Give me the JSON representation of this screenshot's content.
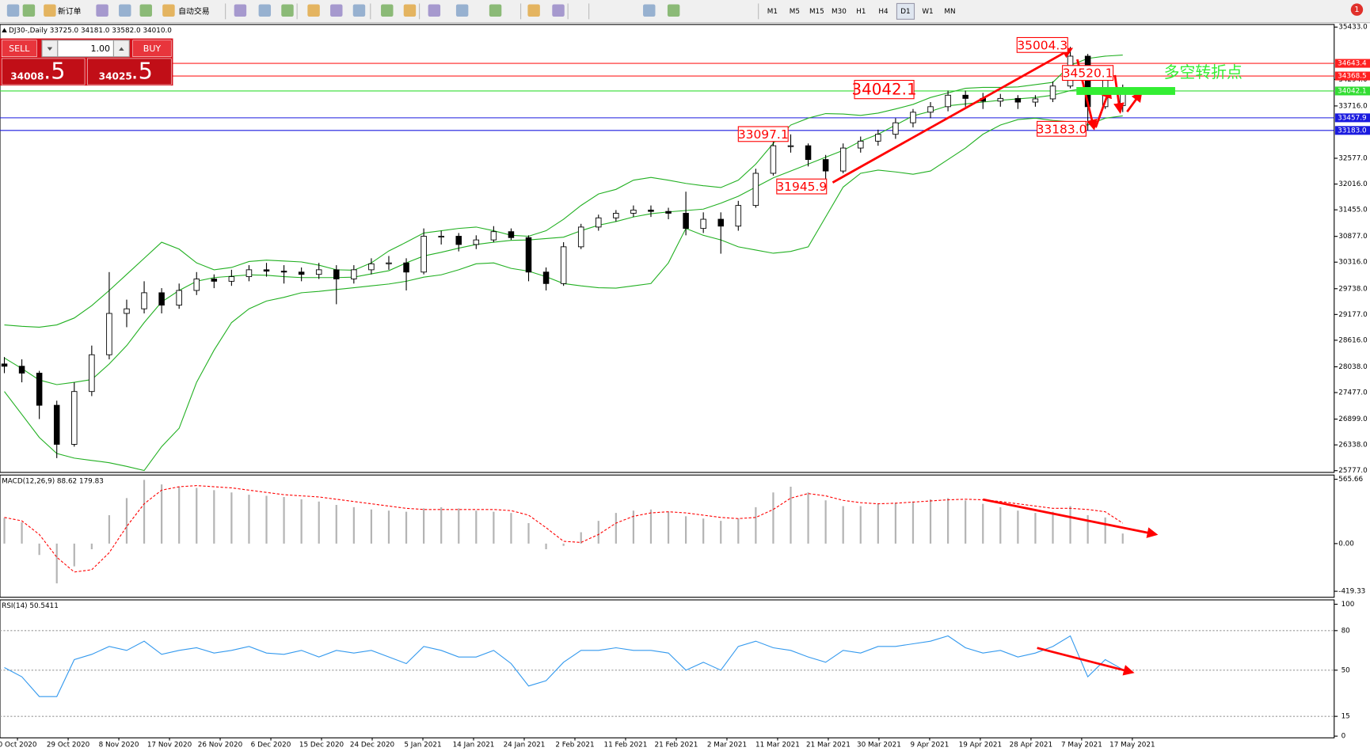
{
  "toolbar": {
    "buttons": [
      "新订单",
      "自动交易"
    ],
    "timeframes": [
      "M1",
      "M5",
      "M15",
      "M30",
      "H1",
      "H4",
      "D1",
      "W1",
      "MN"
    ],
    "active_timeframe": "D1",
    "badge": "1"
  },
  "trade_panel": {
    "sell": "SELL",
    "buy": "BUY",
    "volume": "1.00",
    "sell_price": "34008",
    "sell_pips": ".5",
    "buy_price": "34025",
    "buy_pips": ".5"
  },
  "chart_data": {
    "type": "candlestick",
    "header": "DJ30-,Daily  33725.0 34181.0 33582.0 34010.0",
    "ylim": [
      25739,
      35490
    ],
    "yticks": [
      {
        "value": 35433,
        "label": "35433.0"
      },
      {
        "value": 34294,
        "label": "34294.0"
      },
      {
        "value": 33716,
        "label": "33716.0"
      },
      {
        "value": 32577,
        "label": "32577.0"
      },
      {
        "value": 32016,
        "label": "32016.0"
      },
      {
        "value": 31455,
        "label": "31455.0"
      },
      {
        "value": 30877,
        "label": "30877.0"
      },
      {
        "value": 30316,
        "label": "30316.0"
      },
      {
        "value": 29738,
        "label": "29738.0"
      },
      {
        "value": 29177,
        "label": "29177.0"
      },
      {
        "value": 28616,
        "label": "28616.0"
      },
      {
        "value": 28038,
        "label": "28038.0"
      },
      {
        "value": 27477,
        "label": "27477.0"
      },
      {
        "value": 26899,
        "label": "26899.0"
      },
      {
        "value": 26338,
        "label": "26338.0"
      },
      {
        "value": 25777,
        "label": "25777.0"
      }
    ],
    "dates": [
      "0 Oct 2020",
      "29 Oct 2020",
      "8 Nov 2020",
      "17 Nov 2020",
      "26 Nov 2020",
      "6 Dec 2020",
      "15 Dec 2020",
      "24 Dec 2020",
      "5 Jan 2021",
      "14 Jan 2021",
      "24 Jan 2021",
      "2 Feb 2021",
      "11 Feb 2021",
      "21 Feb 2021",
      "2 Mar 2021",
      "11 Mar 2021",
      "21 Mar 2021",
      "30 Mar 2021",
      "9 Apr 2021",
      "19 Apr 2021",
      "28 Apr 2021",
      "7 May 2021",
      "17 May 2021"
    ],
    "ohlc": [
      [
        28100,
        28250,
        27900,
        28050
      ],
      [
        28050,
        28200,
        27700,
        27900
      ],
      [
        27900,
        27950,
        26900,
        27200
      ],
      [
        27200,
        27300,
        26050,
        26350
      ],
      [
        26350,
        27700,
        26300,
        27500
      ],
      [
        27500,
        28500,
        27400,
        28300
      ],
      [
        28300,
        30100,
        28200,
        29200
      ],
      [
        29200,
        29500,
        28900,
        29300
      ],
      [
        29300,
        29900,
        29200,
        29650
      ],
      [
        29650,
        29750,
        29200,
        29380
      ],
      [
        29380,
        29850,
        29300,
        29700
      ],
      [
        29700,
        30100,
        29600,
        29950
      ],
      [
        29950,
        30050,
        29750,
        29900
      ],
      [
        29900,
        30150,
        29800,
        30000
      ],
      [
        30000,
        30250,
        29900,
        30150
      ],
      [
        30150,
        30300,
        30000,
        30120
      ],
      [
        30120,
        30250,
        29850,
        30100
      ],
      [
        30100,
        30200,
        29900,
        30050
      ],
      [
        30050,
        30300,
        29950,
        30150
      ],
      [
        30150,
        30250,
        29400,
        29950
      ],
      [
        29950,
        30250,
        29850,
        30150
      ],
      [
        30150,
        30400,
        30050,
        30280
      ],
      [
        30280,
        30450,
        30150,
        30300
      ],
      [
        30300,
        30400,
        29700,
        30100
      ],
      [
        30100,
        31050,
        30050,
        30880
      ],
      [
        30880,
        31000,
        30700,
        30880
      ],
      [
        30880,
        30950,
        30550,
        30700
      ],
      [
        30700,
        30900,
        30600,
        30800
      ],
      [
        30800,
        31100,
        30750,
        30980
      ],
      [
        30980,
        31050,
        30800,
        30850
      ],
      [
        30850,
        30900,
        29900,
        30100
      ],
      [
        30100,
        30200,
        29700,
        29850
      ],
      [
        29850,
        30750,
        29800,
        30650
      ],
      [
        30650,
        31150,
        30600,
        31080
      ],
      [
        31080,
        31350,
        31000,
        31280
      ],
      [
        31280,
        31450,
        31200,
        31380
      ],
      [
        31380,
        31550,
        31300,
        31450
      ],
      [
        31450,
        31550,
        31300,
        31420
      ],
      [
        31420,
        31500,
        31250,
        31380
      ],
      [
        31380,
        31850,
        30900,
        31050
      ],
      [
        31050,
        31400,
        30950,
        31250
      ],
      [
        31250,
        31400,
        30500,
        31100
      ],
      [
        31100,
        31650,
        31000,
        31550
      ],
      [
        31550,
        32350,
        31500,
        32250
      ],
      [
        32250,
        32950,
        32200,
        32850
      ],
      [
        32850,
        33097.1,
        32700,
        32850
      ],
      [
        32850,
        32900,
        32400,
        32550
      ],
      [
        32550,
        32650,
        31945.9,
        32300
      ],
      [
        32300,
        32900,
        32250,
        32800
      ],
      [
        32800,
        33050,
        32700,
        32950
      ],
      [
        32950,
        33200,
        32850,
        33100
      ],
      [
        33100,
        33450,
        33000,
        33350
      ],
      [
        33350,
        33650,
        33250,
        33580
      ],
      [
        33580,
        33800,
        33450,
        33700
      ],
      [
        33700,
        34050,
        33600,
        33950
      ],
      [
        33950,
        34050,
        33700,
        33880
      ],
      [
        33880,
        34000,
        33650,
        33820
      ],
      [
        33820,
        33980,
        33700,
        33880
      ],
      [
        33880,
        33950,
        33650,
        33800
      ],
      [
        33800,
        33950,
        33700,
        33870
      ],
      [
        33870,
        34250,
        33800,
        34150
      ],
      [
        34150,
        35004.3,
        34100,
        34800
      ],
      [
        34800,
        34850,
        33183.0,
        33700
      ],
      [
        33700,
        34520.1,
        33650,
        34300
      ],
      [
        33725,
        34181,
        33582,
        34010
      ]
    ],
    "bollinger": {
      "color": "#22b022",
      "upper": [
        28950,
        28920,
        28900,
        28950,
        29100,
        29370,
        29700,
        30050,
        30400,
        30750,
        30600,
        30300,
        30150,
        30200,
        30330,
        30360,
        30340,
        30320,
        30250,
        30150,
        30140,
        30300,
        30560,
        30750,
        30950,
        31000,
        31050,
        31080,
        31000,
        30900,
        30880,
        31000,
        31250,
        31550,
        31800,
        31900,
        32100,
        32160,
        32100,
        32030,
        31980,
        31940,
        32100,
        32450,
        32900,
        33300,
        33450,
        33550,
        33540,
        33510,
        33560,
        33650,
        33750,
        33900,
        34000,
        34100,
        34120,
        34120,
        34130,
        34180,
        34230,
        34600,
        34750,
        34800,
        34825
      ],
      "middle": [
        28230,
        28000,
        27750,
        27650,
        27700,
        27760,
        28100,
        28500,
        29000,
        29450,
        29700,
        29900,
        29980,
        30010,
        30040,
        30030,
        30000,
        29980,
        29980,
        29980,
        29990,
        30060,
        30130,
        30300,
        30450,
        30530,
        30620,
        30700,
        30750,
        30790,
        30800,
        30830,
        30860,
        31000,
        31120,
        31200,
        31300,
        31370,
        31410,
        31440,
        31470,
        31600,
        31750,
        31950,
        32150,
        32300,
        32450,
        32600,
        32750,
        32950,
        33100,
        33300,
        33500,
        33600,
        33720,
        33760,
        33800,
        33840,
        33870,
        33900,
        33950,
        34050,
        34110,
        34100,
        34030
      ],
      "lower": [
        27500,
        27000,
        26500,
        26150,
        26050,
        26000,
        25950,
        25870,
        25780,
        26300,
        26700,
        27700,
        28400,
        29000,
        29300,
        29470,
        29550,
        29650,
        29680,
        29720,
        29760,
        29800,
        29840,
        29900,
        29990,
        30040,
        30150,
        30280,
        30300,
        30180,
        30120,
        30000,
        29850,
        29800,
        29760,
        29750,
        29800,
        29850,
        30300,
        31050,
        30900,
        30800,
        30650,
        30580,
        30510,
        30550,
        30650,
        31300,
        31950,
        32250,
        32320,
        32280,
        32230,
        32300,
        32550,
        32800,
        33100,
        33300,
        33420,
        33450,
        33400,
        33370,
        33300,
        33450,
        33500
      ]
    },
    "hlines": [
      {
        "value": 34643.4,
        "label": "34643.4",
        "color": "#ff2020"
      },
      {
        "value": 34368.5,
        "label": "34368.5",
        "color": "#ff2020"
      },
      {
        "value": 34042.1,
        "label": "34042.1",
        "color": "#33dd33"
      },
      {
        "value": 33457.9,
        "label": "33457.9",
        "color": "#1a1adf"
      },
      {
        "value": 33183.0,
        "label": "33183.0",
        "color": "#1a1adf"
      }
    ],
    "annotations": [
      "35004.3",
      "34520.1",
      "34042.1",
      "33097.1",
      "31945.9",
      "33183.0"
    ],
    "annotation_color": "#ff0000",
    "note": "多空转折点",
    "note_color": "#33ee33",
    "macd": {
      "label": "MACD(12,26,9) 88.62 179.83",
      "ylim": [
        -472,
        603
      ],
      "yticks": [
        {
          "value": 565.66,
          "label": "565.66"
        },
        {
          "value": 0,
          "label": "0.00"
        },
        {
          "value": -419.33,
          "label": "-419.33"
        }
      ],
      "histogram": [
        225,
        188,
        -100,
        -350,
        -200,
        -50,
        250,
        400,
        560,
        520,
        500,
        490,
        470,
        450,
        430,
        420,
        410,
        390,
        370,
        340,
        320,
        300,
        290,
        280,
        310,
        320,
        310,
        290,
        280,
        270,
        180,
        -50,
        -20,
        100,
        200,
        270,
        290,
        300,
        280,
        240,
        220,
        200,
        220,
        320,
        450,
        500,
        450,
        380,
        330,
        330,
        350,
        360,
        370,
        390,
        400,
        380,
        350,
        320,
        290,
        270,
        280,
        330,
        250,
        230,
        88.62
      ],
      "histogram_color": "#b4b4b4",
      "signal": [
        230,
        200,
        80,
        -120,
        -250,
        -230,
        -80,
        150,
        350,
        470,
        500,
        510,
        500,
        490,
        470,
        450,
        430,
        420,
        410,
        390,
        370,
        350,
        330,
        310,
        300,
        300,
        300,
        300,
        300,
        290,
        250,
        140,
        20,
        10,
        80,
        180,
        240,
        270,
        280,
        270,
        250,
        230,
        220,
        230,
        300,
        400,
        440,
        420,
        380,
        360,
        350,
        355,
        365,
        375,
        385,
        390,
        385,
        370,
        350,
        330,
        310,
        310,
        300,
        280,
        179.83
      ],
      "signal_color": "#ff0000"
    },
    "rsi": {
      "label": "RSI(14) 50.5411",
      "ylim": [
        -1.3,
        103.3
      ],
      "yticks": [
        100,
        80,
        50,
        15,
        0
      ],
      "levels": [
        80,
        50,
        15
      ],
      "color": "#3399ee",
      "values": [
        52,
        45,
        30,
        30,
        58,
        62,
        68,
        65,
        72,
        62,
        65,
        67,
        63,
        65,
        68,
        63,
        62,
        65,
        60,
        65,
        63,
        65,
        60,
        55,
        68,
        65,
        60,
        60,
        65,
        55,
        38,
        42,
        56,
        65,
        65,
        67,
        65,
        65,
        63,
        50,
        56,
        50,
        68,
        72,
        67,
        65,
        60,
        56,
        65,
        63,
        68,
        68,
        70,
        72,
        76,
        67,
        63,
        65,
        60,
        63,
        68,
        76,
        45,
        58,
        50.5411
      ]
    }
  }
}
